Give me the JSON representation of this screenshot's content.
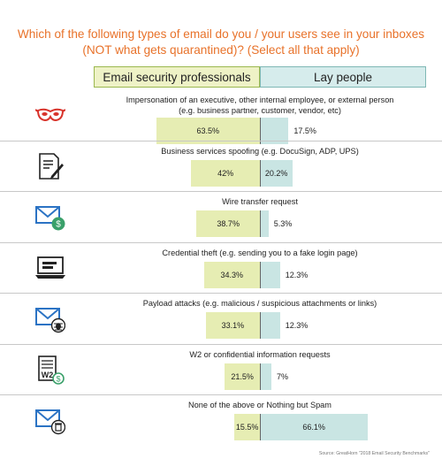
{
  "title": {
    "line1": "Which of the following types of email do you / your users see in your inboxes",
    "line2": "(NOT what gets quarantined)? (Select all that apply)"
  },
  "colors": {
    "title": "#e8722a",
    "professionals": "#e6edb3",
    "lay": "#c9e5e3",
    "icon_red": "#d8332b",
    "icon_blue": "#2b73c4",
    "icon_green": "#3aa06a"
  },
  "source": "Source: GreatHorn \"2018 Email Security Benchmarks\"",
  "chart_data": {
    "type": "bar",
    "orientation": "horizontal-diverging",
    "title": "Which of the following types of email do you / your users see in your inboxes (NOT what gets quarantined)? (Select all that apply)",
    "series_names": [
      "Email security professionals",
      "Lay people"
    ],
    "unit": "%",
    "categories": [
      {
        "label_line1": "Impersonation of an executive, other internal employee, or external person",
        "label_line2": "(e.g. business partner, customer, vendor, etc)",
        "icon": "mask-icon",
        "professionals": 63.5,
        "lay": 17.5,
        "professionals_label": "63.5%",
        "lay_label": "17.5%"
      },
      {
        "label_line1": "Business services spoofing (e.g. DocuSign, ADP, UPS)",
        "label_line2": "",
        "icon": "document-pen-icon",
        "professionals": 42,
        "lay": 20.2,
        "professionals_label": "42%",
        "lay_label": "20.2%"
      },
      {
        "label_line1": "Wire transfer request",
        "label_line2": "",
        "icon": "envelope-money-icon",
        "professionals": 38.7,
        "lay": 5.3,
        "professionals_label": "38.7%",
        "lay_label": "5.3%"
      },
      {
        "label_line1": "Credential theft (e.g. sending you to a fake login page)",
        "label_line2": "",
        "icon": "laptop-login-icon",
        "professionals": 34.3,
        "lay": 12.3,
        "professionals_label": "34.3%",
        "lay_label": "12.3%"
      },
      {
        "label_line1": "Payload attacks (e.g. malicious / suspicious attachments or links)",
        "label_line2": "",
        "icon": "envelope-bug-icon",
        "professionals": 33.1,
        "lay": 12.3,
        "professionals_label": "33.1%",
        "lay_label": "12.3%"
      },
      {
        "label_line1": "W2 or confidential information requests",
        "label_line2": "",
        "icon": "w2-form-icon",
        "professionals": 21.5,
        "lay": 7,
        "professionals_label": "21.5%",
        "lay_label": "7%"
      },
      {
        "label_line1": "None of the above or Nothing but Spam",
        "label_line2": "",
        "icon": "envelope-trash-icon",
        "professionals": 15.5,
        "lay": 66.1,
        "professionals_label": "15.5%",
        "lay_label": "66.1%"
      }
    ]
  }
}
